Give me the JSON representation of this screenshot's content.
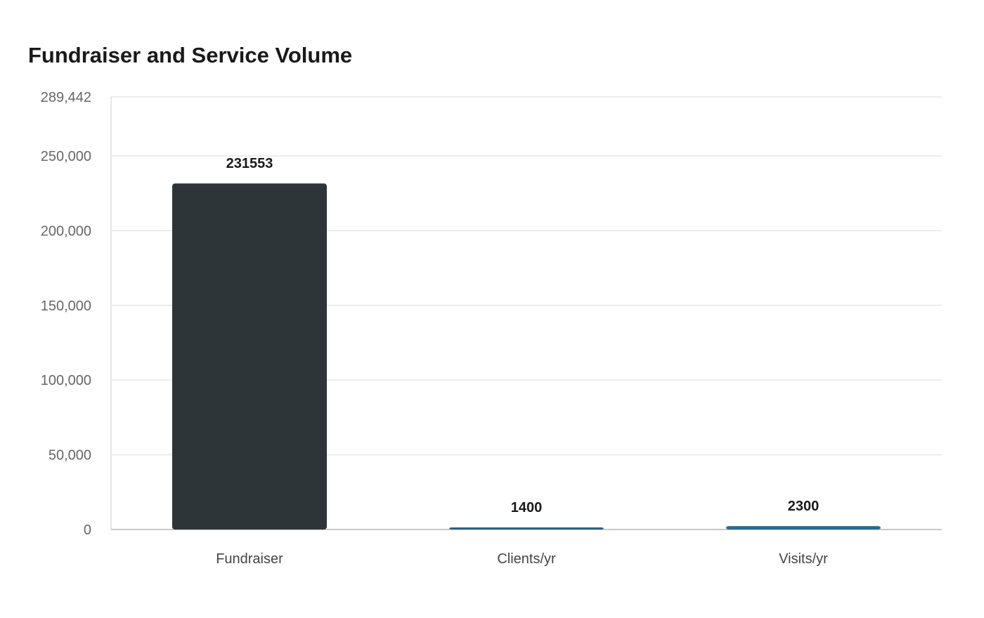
{
  "chart_data": {
    "type": "bar",
    "title": "Fundraiser and Service Volume",
    "xlabel": "",
    "ylabel": "",
    "categories": [
      "Fundraiser",
      "Clients/yr",
      "Visits/yr"
    ],
    "values": [
      231553,
      1400,
      2300
    ],
    "data_labels": [
      "231553",
      "1400",
      "2300"
    ],
    "ylim": [
      0,
      289442
    ],
    "yticks": [
      0,
      50000,
      100000,
      150000,
      200000,
      250000,
      289442
    ],
    "ytick_labels": [
      "0",
      "50,000",
      "100,000",
      "150,000",
      "200,000",
      "250,000",
      "289,442"
    ],
    "grid": true,
    "legend": "none",
    "colors": [
      "#2e3538",
      "#2e5f82",
      "#2e6a8e"
    ],
    "gridline_color": "#e6e6e6",
    "axis_color": "#c8c8c8"
  }
}
